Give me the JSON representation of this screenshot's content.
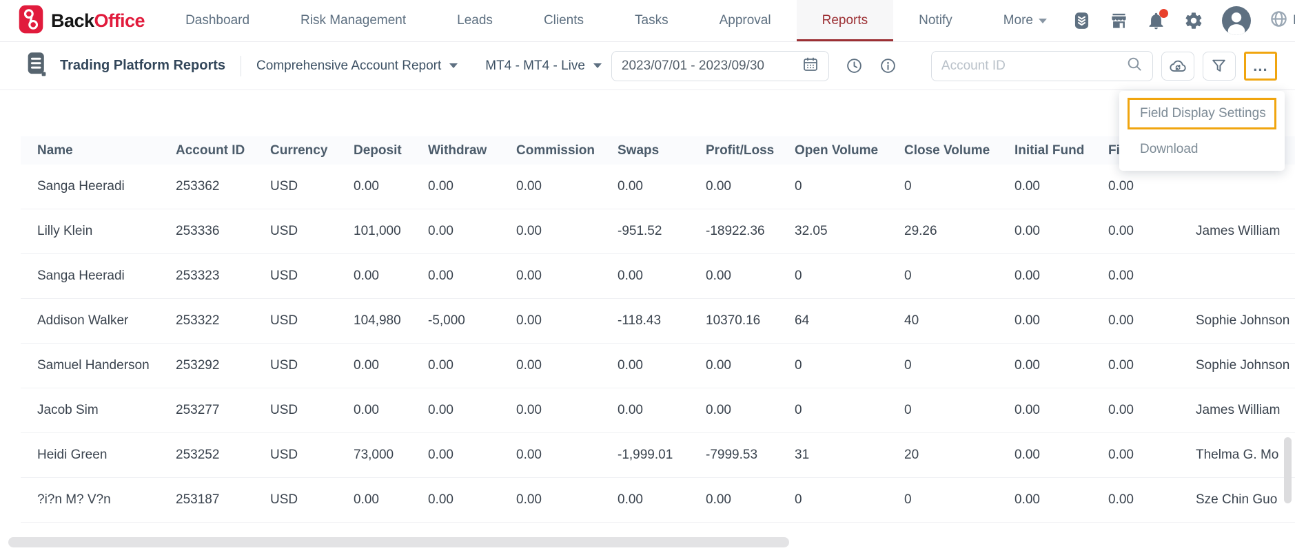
{
  "brand": {
    "black": "Back",
    "red": "Office"
  },
  "nav": {
    "items": [
      {
        "label": "Dashboard",
        "active": false
      },
      {
        "label": "Risk Management",
        "active": false
      },
      {
        "label": "Leads",
        "active": false
      },
      {
        "label": "Clients",
        "active": false
      },
      {
        "label": "Tasks",
        "active": false
      },
      {
        "label": "Approval",
        "active": false
      },
      {
        "label": "Reports",
        "active": true
      },
      {
        "label": "Notify",
        "active": false
      },
      {
        "label": "More",
        "active": false,
        "has_caret": true
      }
    ]
  },
  "locale": {
    "label": "EN"
  },
  "toolbar": {
    "title": "Trading Platform Reports",
    "report_select": "Comprehensive Account Report",
    "platform_select": "MT4 - MT4 - Live",
    "date_range": "2023/07/01 - 2023/09/30",
    "search_placeholder": "Account ID",
    "more_label": "..."
  },
  "menu": {
    "items": [
      {
        "label": "Field Display Settings",
        "highlighted": true
      },
      {
        "label": "Download",
        "highlighted": false
      }
    ]
  },
  "table": {
    "columns": [
      "Name",
      "Account ID",
      "Currency",
      "Deposit",
      "Withdraw",
      "Commission",
      "Swaps",
      "Profit/Loss",
      "Open Volume",
      "Close Volume",
      "Initial Fund",
      "Fi",
      ""
    ],
    "rows": [
      [
        "Sanga Heeradi",
        "253362",
        "USD",
        "0.00",
        "0.00",
        "0.00",
        "0.00",
        "0.00",
        "0",
        "0",
        "0.00",
        "0.00",
        ""
      ],
      [
        "Lilly Klein",
        "253336",
        "USD",
        "101,000",
        "0.00",
        "0.00",
        "-951.52",
        "-18922.36",
        "32.05",
        "29.26",
        "0.00",
        "0.00",
        "James William"
      ],
      [
        "Sanga Heeradi",
        "253323",
        "USD",
        "0.00",
        "0.00",
        "0.00",
        "0.00",
        "0.00",
        "0",
        "0",
        "0.00",
        "0.00",
        ""
      ],
      [
        "Addison Walker",
        "253322",
        "USD",
        "104,980",
        "-5,000",
        "0.00",
        "-118.43",
        "10370.16",
        "64",
        "40",
        "0.00",
        "0.00",
        "Sophie Johnson"
      ],
      [
        "Samuel Handerson",
        "253292",
        "USD",
        "0.00",
        "0.00",
        "0.00",
        "0.00",
        "0.00",
        "0",
        "0",
        "0.00",
        "0.00",
        "Sophie Johnson"
      ],
      [
        "Jacob Sim",
        "253277",
        "USD",
        "0.00",
        "0.00",
        "0.00",
        "0.00",
        "0.00",
        "0",
        "0",
        "0.00",
        "0.00",
        "James William"
      ],
      [
        "Heidi Green",
        "253252",
        "USD",
        "73,000",
        "0.00",
        "0.00",
        "-1,999.01",
        "-7999.53",
        "31",
        "20",
        "0.00",
        "0.00",
        "Thelma G. Mo"
      ],
      [
        "?i?n M? V?n",
        "253187",
        "USD",
        "0.00",
        "0.00",
        "0.00",
        "0.00",
        "0.00",
        "0",
        "0",
        "0.00",
        "0.00",
        "Sze Chin Guo"
      ]
    ]
  },
  "colors": {
    "brand_red": "#e11b3c",
    "active_tab_red": "#9c2f33",
    "accent_highlight": "#f0a50f",
    "notification_badge": "#e8402c"
  }
}
